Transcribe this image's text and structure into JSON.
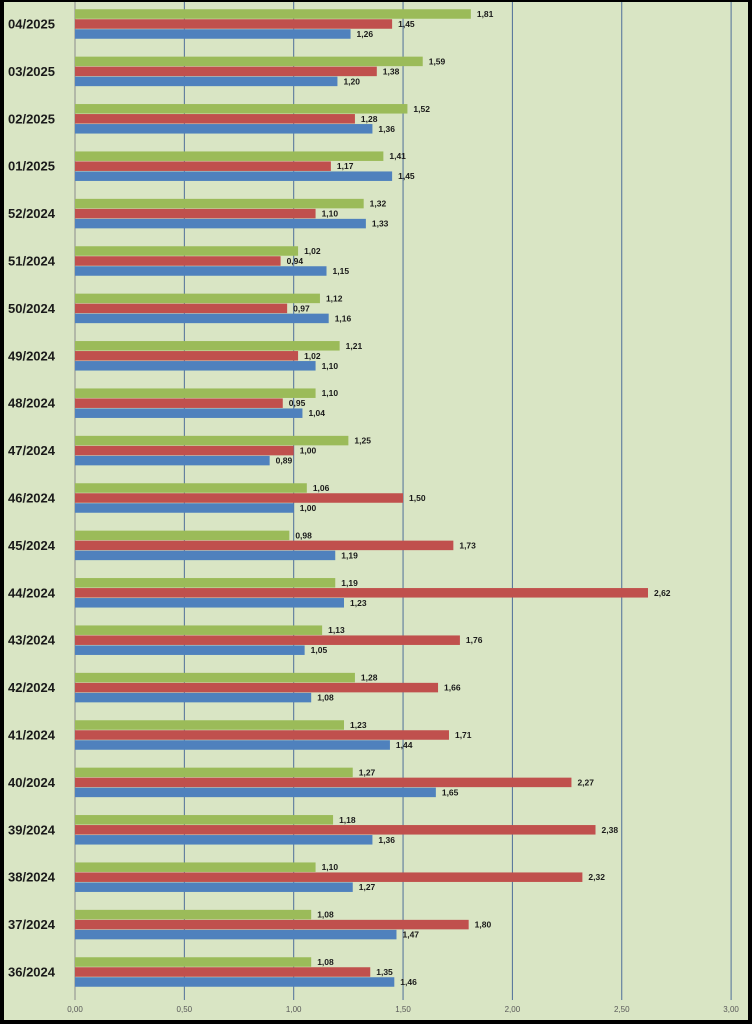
{
  "chart_data": {
    "type": "bar",
    "orientation": "horizontal",
    "categories": [
      "04/2025",
      "03/2025",
      "02/2025",
      "01/2025",
      "52/2024",
      "51/2024",
      "50/2024",
      "49/2024",
      "48/2024",
      "47/2024",
      "46/2024",
      "45/2024",
      "44/2024",
      "43/2024",
      "42/2024",
      "41/2024",
      "40/2024",
      "39/2024",
      "38/2024",
      "37/2024",
      "36/2024"
    ],
    "series": [
      {
        "color": "#9BBB59",
        "values": [
          1.81,
          1.59,
          1.52,
          1.41,
          1.32,
          1.02,
          1.12,
          1.21,
          1.1,
          1.25,
          1.06,
          0.98,
          1.19,
          1.13,
          1.28,
          1.23,
          1.27,
          1.18,
          1.1,
          1.08,
          1.08
        ],
        "labels": [
          "1,81",
          "1,59",
          "1,52",
          "1,41",
          "1,32",
          "1,02",
          "1,12",
          "1,21",
          "1,10",
          "1,25",
          "1,06",
          "0,98",
          "1,19",
          "1,13",
          "1,28",
          "1,23",
          "1,27",
          "1,18",
          "1,10",
          "1,08",
          "1,08"
        ]
      },
      {
        "color": "#C0504D",
        "values": [
          1.45,
          1.38,
          1.28,
          1.17,
          1.1,
          0.94,
          0.97,
          1.02,
          0.95,
          1.0,
          1.5,
          1.73,
          2.62,
          1.76,
          1.66,
          1.71,
          2.27,
          2.38,
          2.32,
          1.8,
          1.35
        ],
        "labels": [
          "1,45",
          "1,38",
          "1,28",
          "1,17",
          "1,10",
          "0,94",
          "0,97",
          "1,02",
          "0,95",
          "1,00",
          "1,50",
          "1,73",
          "2,62",
          "1,76",
          "1,66",
          "1,71",
          "2,27",
          "2,38",
          "2,32",
          "1,80",
          "1,35"
        ]
      },
      {
        "color": "#4F81BD",
        "values": [
          1.26,
          1.2,
          1.36,
          1.45,
          1.33,
          1.15,
          1.16,
          1.1,
          1.04,
          0.89,
          1.0,
          1.19,
          1.23,
          1.05,
          1.08,
          1.44,
          1.65,
          1.36,
          1.27,
          1.47,
          1.46
        ],
        "labels": [
          "1,26",
          "1,20",
          "1,36",
          "1,45",
          "1,33",
          "1,15",
          "1,16",
          "1,10",
          "1,04",
          "0,89",
          "1,00",
          "1,19",
          "1,23",
          "1,05",
          "1,08",
          "1,44",
          "1,65",
          "1,36",
          "1,27",
          "1,47",
          "1,46"
        ]
      }
    ],
    "x_ticks": [
      "0,00",
      "0,50",
      "1,00",
      "1,50",
      "2,00",
      "2,50",
      "3,00"
    ],
    "xlim": [
      0,
      3
    ],
    "gridlines": true,
    "legend": "none",
    "title": "",
    "xlabel": "",
    "ylabel": "",
    "colors": {
      "background": "#D9E5C4",
      "gridline": "#4F6E99",
      "frame": "#000000"
    }
  }
}
